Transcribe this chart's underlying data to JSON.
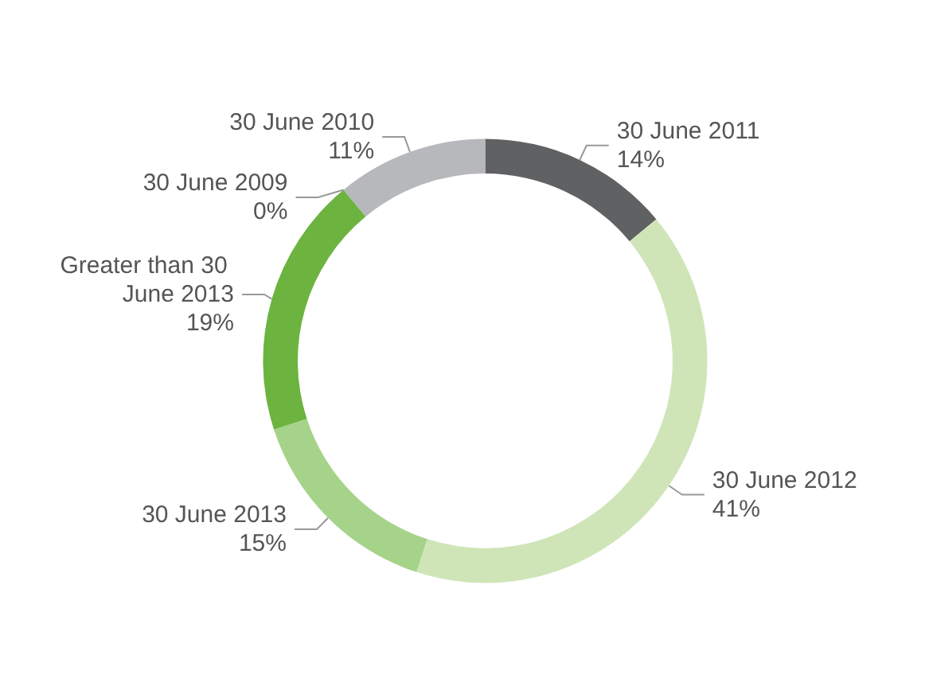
{
  "chart_data": {
    "type": "donut",
    "categories": [
      "30 June 2011",
      "30 June 2012",
      "30 June 2013",
      "Greater than 30 June 2013",
      "30 June 2009",
      "30 June 2010"
    ],
    "values": [
      14,
      41,
      15,
      19,
      0,
      11
    ],
    "colors": [
      "#606163",
      "#cfe5b8",
      "#a6d38a",
      "#6cb43f",
      "#a0a2a5",
      "#b7b8bb"
    ],
    "value_labels": [
      "14%",
      "41%",
      "15%",
      "19%",
      "0%",
      "11%"
    ]
  }
}
